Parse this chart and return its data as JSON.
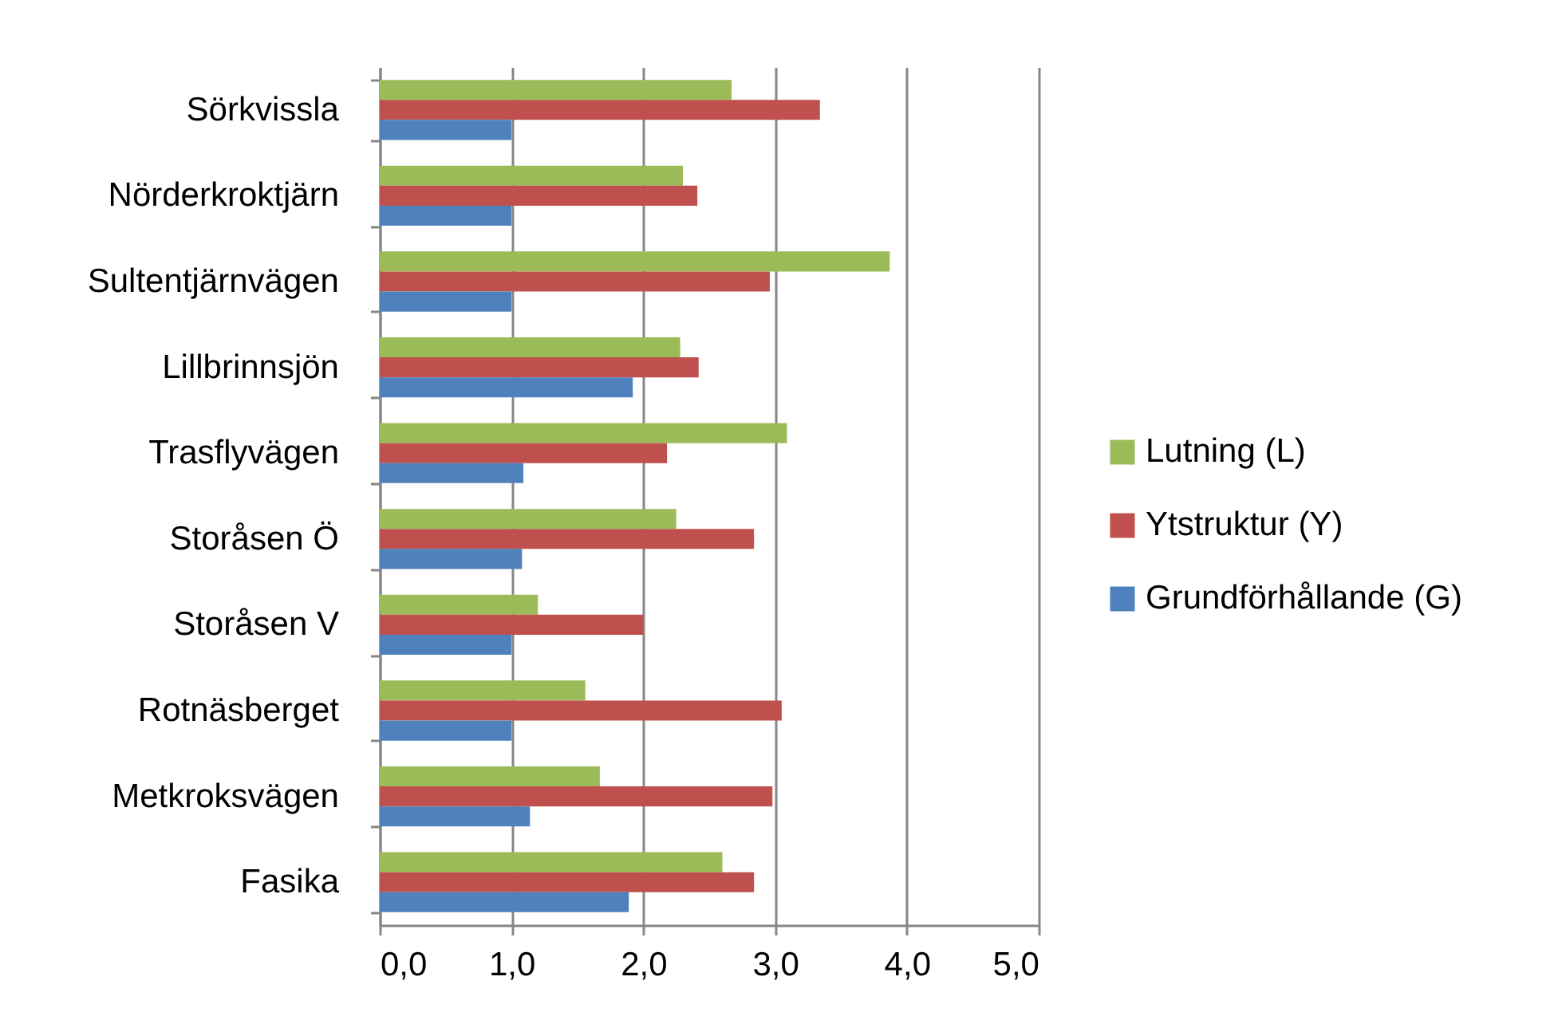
{
  "chart_data": {
    "type": "bar",
    "orientation": "horizontal",
    "categories": [
      "Sörkvissla",
      "Nörderkroktjärn",
      "Sultentjärnvägen",
      "Lillbrinnsjön",
      "Trasflyvägen",
      "Storåsen Ö",
      "Storåsen V",
      "Rotnäsberget",
      "Metkroksvägen",
      "Fasika"
    ],
    "series": [
      {
        "name": "Lutning (L)",
        "color": "#9bbb59",
        "values": [
          2.67,
          2.3,
          3.87,
          2.28,
          3.09,
          2.25,
          1.2,
          1.56,
          1.67,
          2.6
        ]
      },
      {
        "name": "Ytstruktur (Y)",
        "color": "#c0504d",
        "values": [
          3.34,
          2.41,
          2.96,
          2.42,
          2.18,
          2.84,
          2.0,
          3.05,
          2.98,
          2.84
        ]
      },
      {
        "name": "Grundförhållande (G)",
        "color": "#4f81bd",
        "values": [
          1.0,
          1.0,
          1.0,
          1.92,
          1.09,
          1.08,
          1.0,
          1.0,
          1.14,
          1.89
        ]
      }
    ],
    "xlim": [
      0,
      5
    ],
    "xticks": [
      {
        "value": 0,
        "label": "0,0"
      },
      {
        "value": 1,
        "label": "1,0"
      },
      {
        "value": 2,
        "label": "2,0"
      },
      {
        "value": 3,
        "label": "3,0"
      },
      {
        "value": 4,
        "label": "4,0"
      },
      {
        "value": 5,
        "label": "5,0"
      }
    ],
    "grid": "x",
    "legend": "right"
  }
}
